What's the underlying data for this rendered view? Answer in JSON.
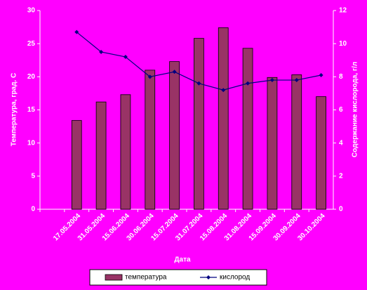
{
  "chart_data": {
    "type": "bar_line",
    "x_label": "Дата",
    "y_label": "Температура, град. С",
    "y2_label": "Содержание кислорода, г/л",
    "categories": [
      null,
      "17.05.2004",
      "31.05.2004",
      "15.06.2004",
      "30.06.2004",
      "15.07.2004",
      "31.07.2004",
      "15.08.2004",
      "31.08.2004",
      "15.09.2004",
      "30.09.2004",
      "30.10.2004"
    ],
    "series": [
      {
        "name": "температура",
        "color": "#993366",
        "kind": "bar",
        "values": [
          null,
          13.4,
          16.2,
          17.3,
          21,
          22.3,
          25.8,
          27.4,
          24.3,
          19.9,
          20.3,
          17.0
        ]
      },
      {
        "name": "кислород",
        "color": "#000080",
        "kind": "line",
        "axis": "y2",
        "values": [
          null,
          10.7,
          9.5,
          9.2,
          8.0,
          8.3,
          7.6,
          7.2,
          7.6,
          7.8,
          7.8,
          8.1
        ]
      }
    ],
    "ylim": [
      0,
      30
    ],
    "yticks": [
      0,
      5,
      10,
      15,
      20,
      25,
      30
    ],
    "y2lim": [
      0,
      12
    ],
    "y2ticks": [
      0,
      2,
      4,
      6,
      8,
      10,
      12
    ],
    "legend": "bottom"
  }
}
